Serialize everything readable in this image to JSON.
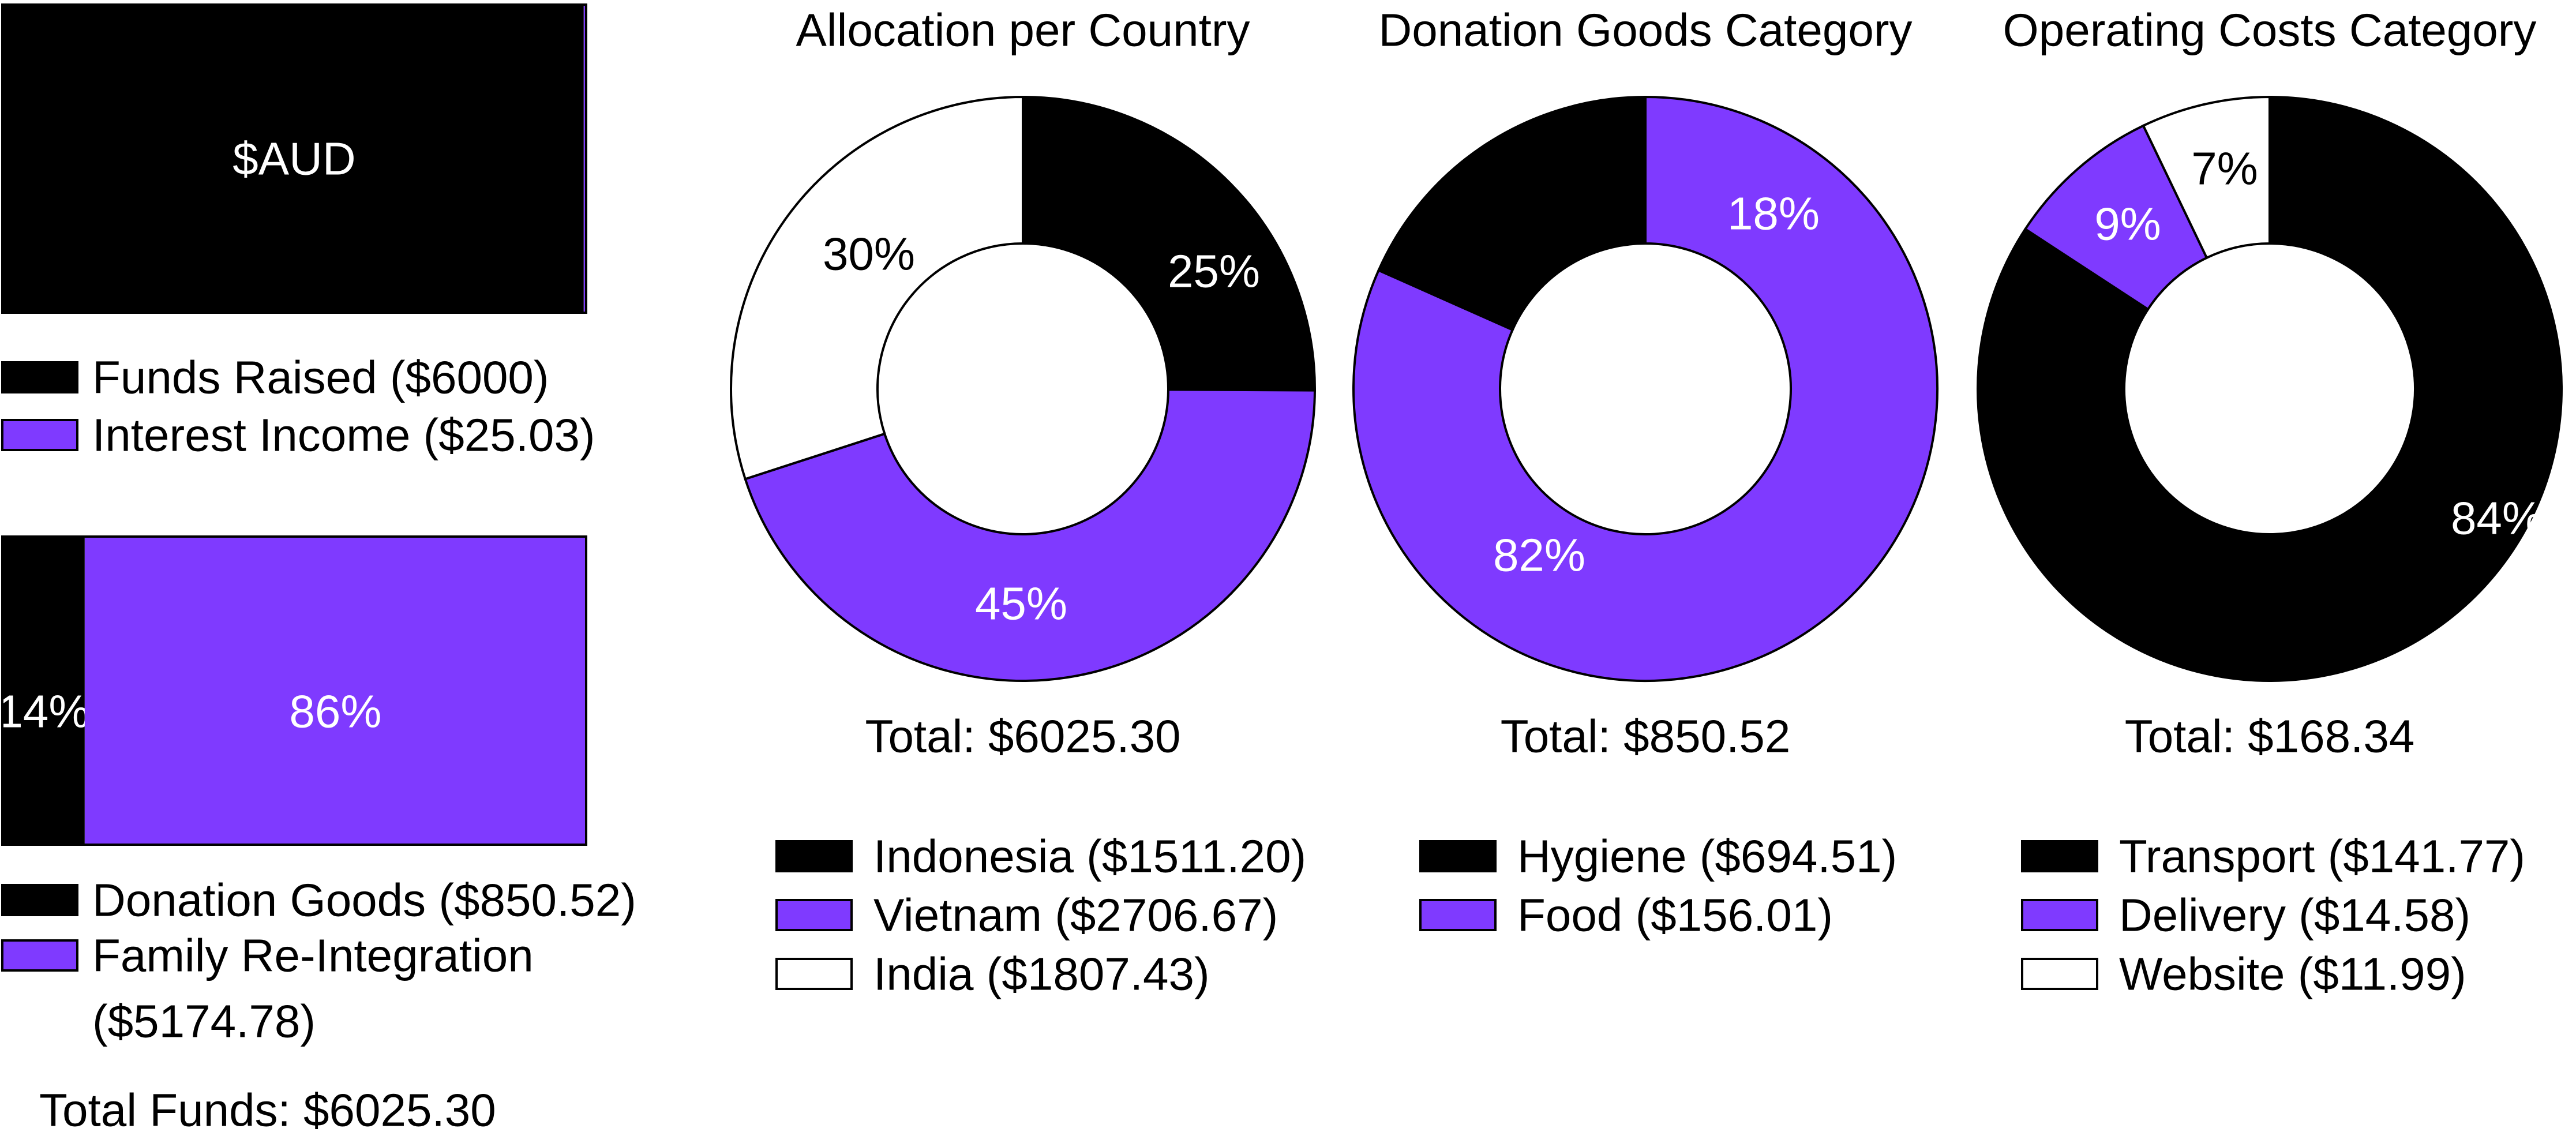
{
  "colors": {
    "black": "#000000",
    "purple": "#7f3aff",
    "white": "#ffffff"
  },
  "chart_data": [
    {
      "type": "bar",
      "stacked": "horizontal",
      "unit_label": "$AUD",
      "series": [
        {
          "name": "Funds Raised ($6000)",
          "value": 6000,
          "color": "#000000"
        },
        {
          "name": "Interest Income ($25.03)",
          "value": 25.03,
          "color": "#7f3aff"
        }
      ]
    },
    {
      "type": "bar",
      "stacked": "horizontal",
      "series": [
        {
          "name": "Donation Goods ($850.52)",
          "value": 850.52,
          "percent_label": "14%",
          "color": "#000000"
        },
        {
          "name": "Family Re-Integration",
          "name_line2": "($5174.78)",
          "value": 5174.78,
          "percent_label": "86%",
          "color": "#7f3aff"
        }
      ],
      "total_label": "Total Funds: $6025.30"
    },
    {
      "type": "pie",
      "donut": true,
      "title": "Allocation per Country",
      "slices": [
        {
          "name": "Indonesia ($1511.20)",
          "value": 1511.2,
          "percent_label": "25%",
          "color": "#000000",
          "label_color": "#ffffff"
        },
        {
          "name": "Vietnam ($2706.67)",
          "value": 2706.67,
          "percent_label": "45%",
          "color": "#7f3aff",
          "label_color": "#ffffff"
        },
        {
          "name": "India ($1807.43)",
          "value": 1807.43,
          "percent_label": "30%",
          "color": "#ffffff",
          "label_color": "#000000"
        }
      ],
      "total_label": "Total: $6025.30"
    },
    {
      "type": "pie",
      "donut": true,
      "title": "Donation Goods Category",
      "slices": [
        {
          "name": "Hygiene ($694.51)",
          "value": 694.51,
          "percent_label": "82%",
          "color": "#7f3aff",
          "label_color": "#ffffff"
        },
        {
          "name": "Food ($156.01)",
          "value": 156.01,
          "percent_label": "18%",
          "color": "#000000",
          "label_color": "#ffffff"
        }
      ],
      "legend": [
        {
          "name": "Hygiene ($694.51)",
          "color": "#000000"
        },
        {
          "name": "Food ($156.01)",
          "color": "#7f3aff"
        }
      ],
      "total_label": "Total: $850.52"
    },
    {
      "type": "pie",
      "donut": true,
      "title": "Operating Costs Category",
      "slices": [
        {
          "name": "Transport ($141.77)",
          "value": 141.77,
          "percent_label": "84%",
          "color": "#000000",
          "label_color": "#ffffff"
        },
        {
          "name": "Delivery ($14.58)",
          "value": 14.58,
          "percent_label": "9%",
          "color": "#7f3aff",
          "label_color": "#ffffff"
        },
        {
          "name": "Website ($11.99)",
          "value": 11.99,
          "percent_label": "7%",
          "color": "#ffffff",
          "label_color": "#000000"
        }
      ],
      "total_label": "Total: $168.34"
    }
  ]
}
